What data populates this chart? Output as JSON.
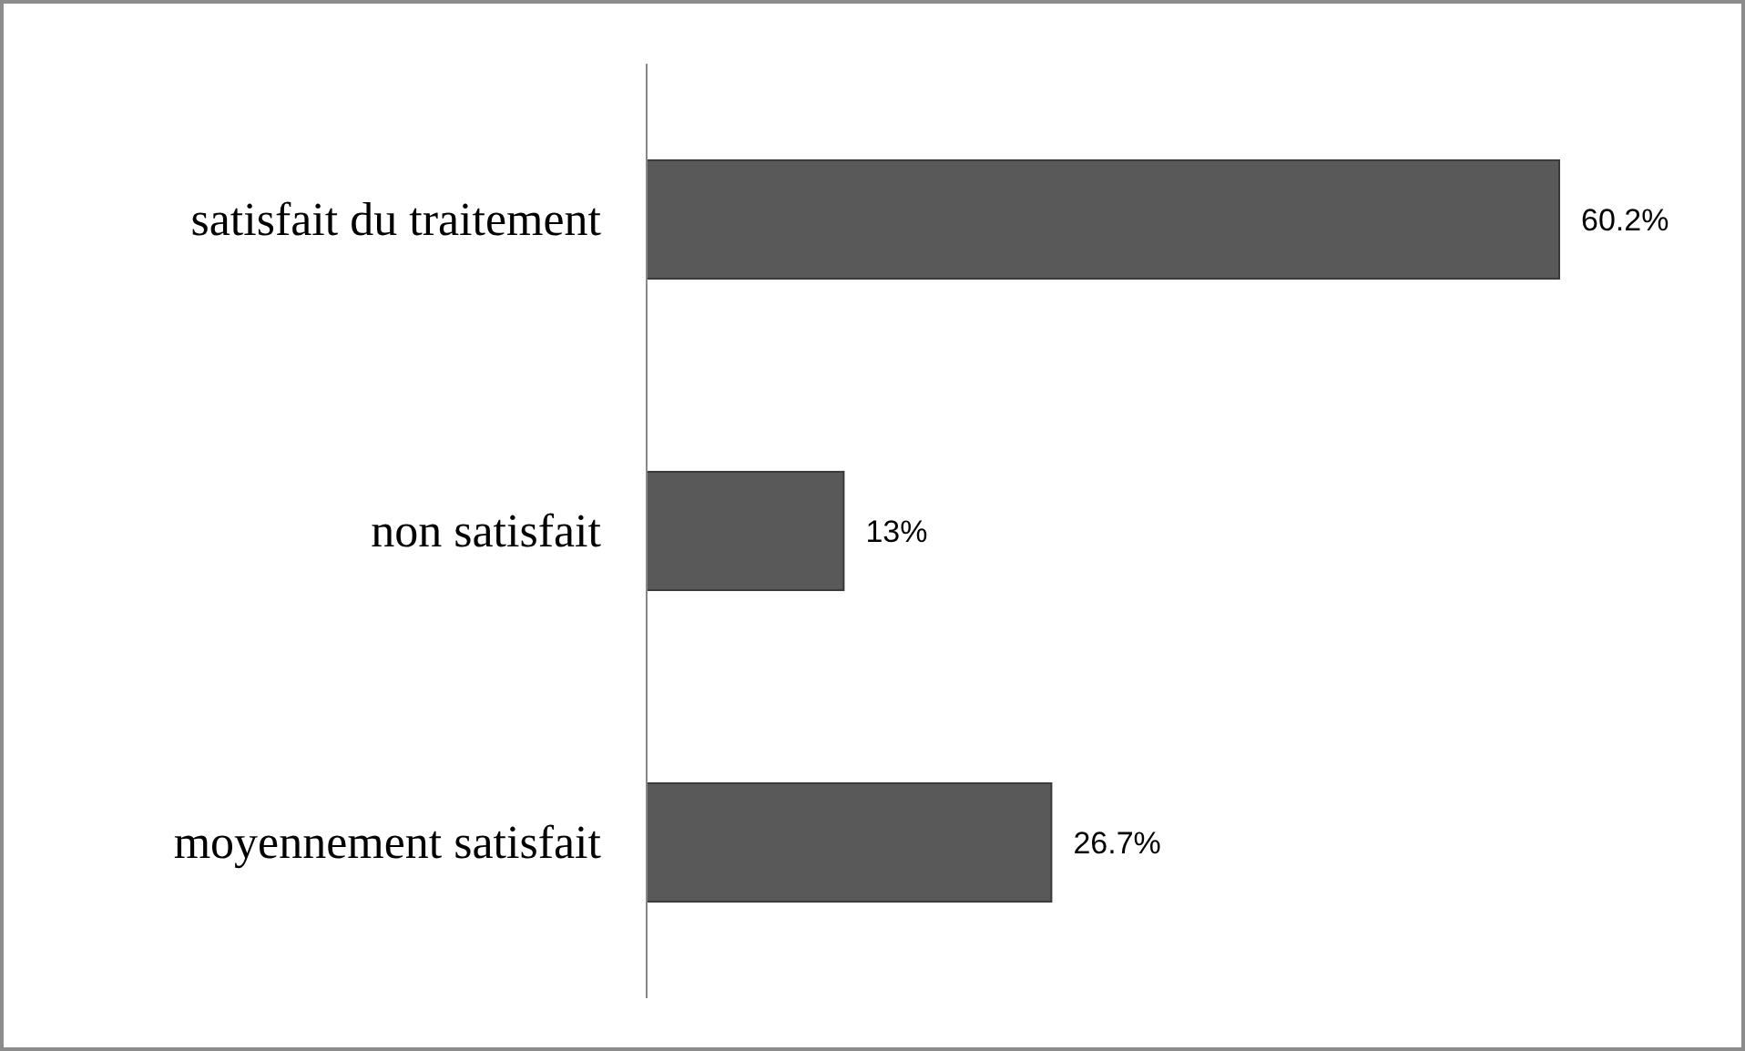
{
  "chart_data": {
    "type": "bar",
    "orientation": "horizontal",
    "categories": [
      "satisfait du traitement",
      "non satisfait",
      "moyennement satisfait"
    ],
    "values": [
      60.2,
      13,
      26.7
    ],
    "value_labels": [
      "60.2%",
      "13%",
      "26.7%"
    ],
    "color": "#595959"
  }
}
